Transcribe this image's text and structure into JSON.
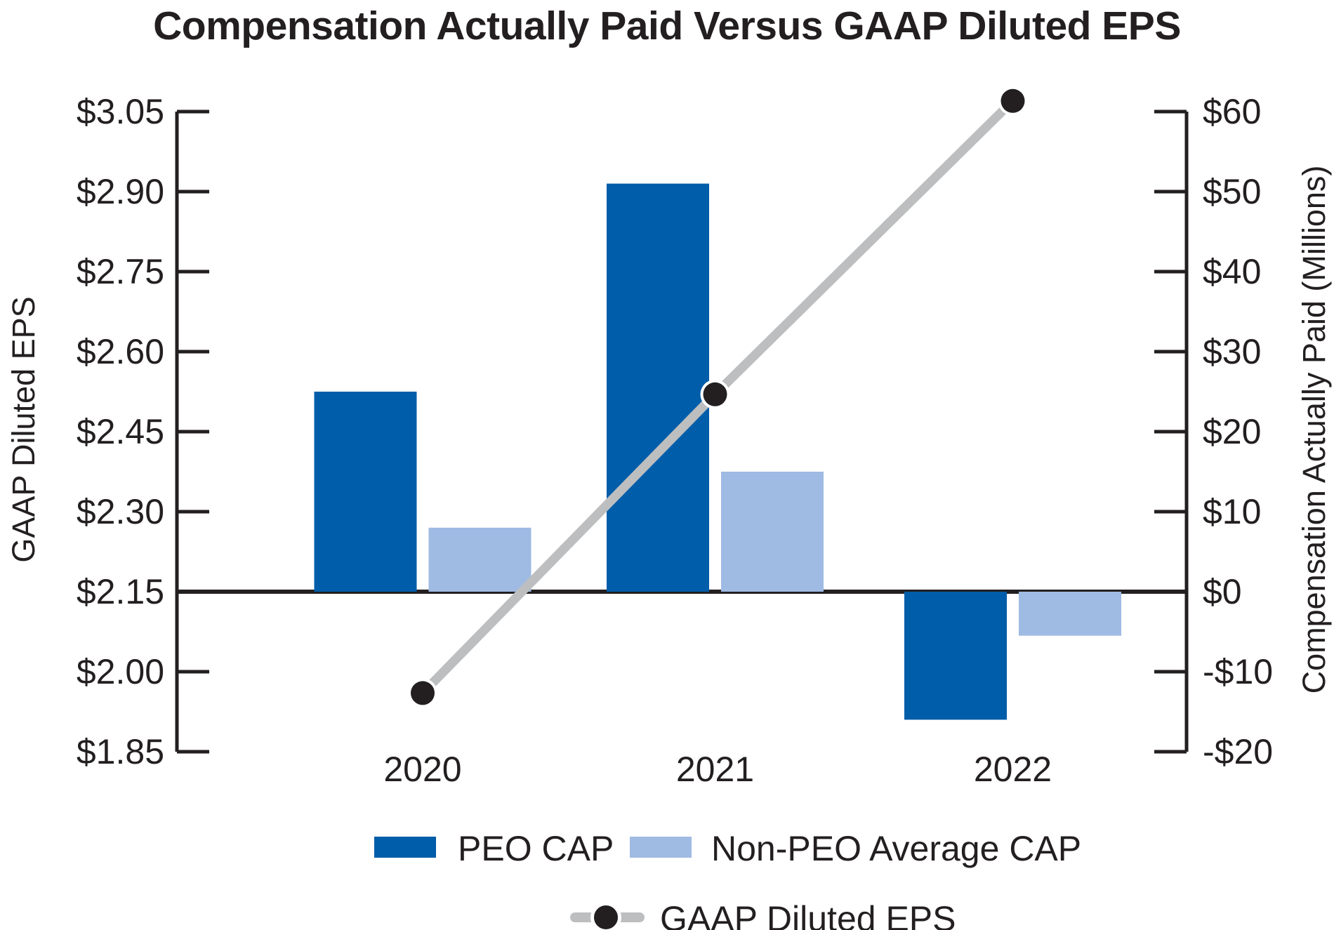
{
  "title": "Compensation Actually Paid Versus GAAP Diluted EPS",
  "legend": {
    "peo_label": "PEO CAP",
    "non_peo_label": "Non-PEO Average CAP",
    "eps_label": "GAAP Diluted EPS"
  },
  "colors": {
    "peo_bar": "#005da9",
    "non_peo_bar": "#9fbae3",
    "eps_line": "#bcbec0",
    "eps_marker": "#231f20",
    "axis": "#231f20",
    "text": "#231f20"
  },
  "chart_data": {
    "type": "bar",
    "subtype": "grouped-bars-with-line-overlay",
    "categories": [
      "2020",
      "2021",
      "2022"
    ],
    "series": [
      {
        "name": "PEO CAP",
        "type": "bar",
        "axis": "right",
        "values": [
          25,
          51,
          -16
        ]
      },
      {
        "name": "Non-PEO Average CAP",
        "type": "bar",
        "axis": "right",
        "values": [
          8,
          15,
          -5.5
        ]
      },
      {
        "name": "GAAP Diluted EPS",
        "type": "line",
        "axis": "left",
        "values": [
          1.96,
          2.52,
          3.07
        ]
      }
    ],
    "title": "Compensation Actually Paid Versus GAAP Diluted EPS",
    "xlabel": "",
    "left_axis": {
      "label": "GAAP Diluted EPS",
      "tick_labels": [
        "$3.05",
        "$2.90",
        "$2.75",
        "$2.60",
        "$2.45",
        "$2.30",
        "$2.15",
        "$2.00",
        "$1.85"
      ],
      "min": 1.85,
      "max": 3.05,
      "step": 0.15
    },
    "right_axis": {
      "label": "Compensation Actually Paid (Millions)",
      "tick_labels": [
        "$60",
        "$50",
        "$40",
        "$30",
        "$20",
        "$10",
        "$0",
        "-$10",
        "-$20"
      ],
      "min": -20,
      "max": 60,
      "step": 10
    },
    "baseline": {
      "left_value": 2.15,
      "right_value": 0
    },
    "grid": false,
    "legend_position": "bottom"
  }
}
